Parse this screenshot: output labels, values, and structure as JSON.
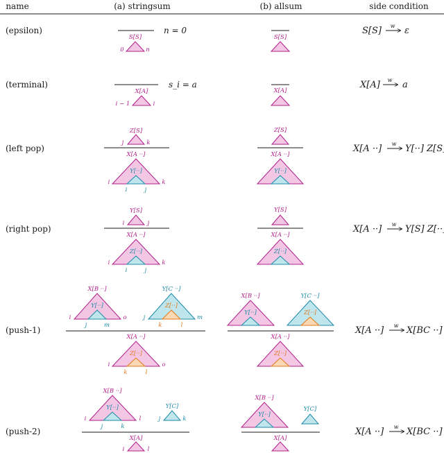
{
  "headers": {
    "name": "name",
    "stringsum": "(a) stringsum",
    "allsum": "(b) allsum",
    "side": "side condition"
  },
  "rows": {
    "epsilon": {
      "label": "(epsilon)",
      "premise": "n = 0",
      "item_a": "S[S]",
      "item_b": "S[S]",
      "span_l": "0",
      "span_r": "n",
      "cond_lhs": "S[S]",
      "cond_rhs": "ε",
      "cond_w": "w"
    },
    "terminal": {
      "label": "(terminal)",
      "premise": "s_i = a",
      "item_a": "X[A]",
      "item_b": "X[A]",
      "span_l": "i − 1",
      "span_r": "i",
      "cond_lhs": "X[A]",
      "cond_rhs": "a",
      "cond_w": "w"
    },
    "leftpop": {
      "label": "(left pop)",
      "top_a": "Z[S]",
      "top_b": "Z[S]",
      "top_l": "j",
      "top_r": "k",
      "item_a": "X[A ··]",
      "item_b": "X[A ··]",
      "inner_a": "Y[··]",
      "inner_b": "Y[··]",
      "outer_l": "i",
      "outer_r": "k",
      "inner_l": "i",
      "inner_r": "j",
      "cond_lhs": "X[A ··]",
      "cond_rhs": "Y[··] Z[S]",
      "cond_w": "w"
    },
    "rightpop": {
      "label": "(right pop)",
      "top_a": "Y[S]",
      "top_b": "Y[S]",
      "top_l": "i",
      "top_r": "j",
      "item_a": "X[A ··]",
      "item_b": "X[A ··]",
      "inner_a": "Z[··]",
      "inner_b": "Z[··]",
      "outer_l": "i",
      "outer_r": "k",
      "inner_l": "i",
      "inner_r": "j",
      "cond_lhs": "X[A ··]",
      "cond_rhs": "Y[S] Z[··]",
      "cond_w": "w"
    },
    "push1": {
      "label": "(push-1)",
      "p1_a": "X[B ··]",
      "p1_inner": "Y[··]",
      "p1_l": "i",
      "p1_r": "o",
      "p1_il": "j",
      "p1_ir": "m",
      "p2_a": "Y[C ··]",
      "p2_inner": "Z[··]",
      "p2_l": "j",
      "p2_r": "m",
      "p2_il": "k",
      "p2_ir": "l",
      "item_a": "X[A ··]",
      "inner_a": "Z[··]",
      "outer_l": "i",
      "outer_r": "o",
      "inner_l": "k",
      "inner_r": "l",
      "b_p1": "X[B ··]",
      "b_p1_inner": "Y[··]",
      "b_p2": "Y[C ··]",
      "b_p2_inner": "Z[··]",
      "b_item": "X[A ··]",
      "b_inner": "Z[··]",
      "cond_lhs": "X[A ··]",
      "cond_rhs": "X[BC ··]",
      "cond_w": "w"
    },
    "push2": {
      "label": "(push-2)",
      "p1_a": "X[B ··]",
      "p1_inner": "Y[··]",
      "p1_l": "i",
      "p1_r": "l",
      "p1_il": "j",
      "p1_ir": "k",
      "p2_a": "Y[C]",
      "p2_l": "j",
      "p2_r": "k",
      "item_a": "X[A]",
      "outer_l": "i",
      "outer_r": "l",
      "b_p1": "X[B ··]",
      "b_p1_inner": "Y[··]",
      "b_p2": "Y[C]",
      "b_item": "X[A]",
      "cond_lhs": "X[A ··]",
      "cond_rhs": "X[BC ··]",
      "cond_w": "w"
    }
  }
}
